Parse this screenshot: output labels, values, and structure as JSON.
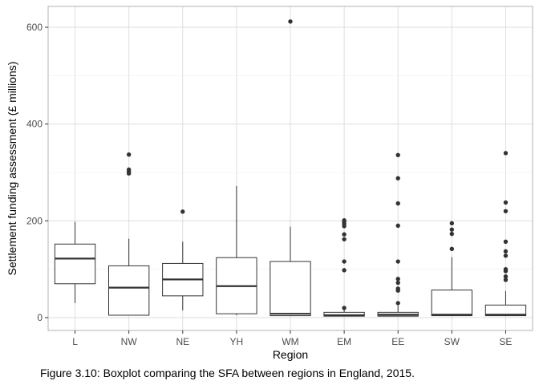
{
  "chart_data": {
    "type": "box",
    "title": "",
    "xlabel": "Region",
    "ylabel": "Settlement funding assessment (£ millions)",
    "ylim": [
      -30,
      640
    ],
    "yticks": [
      0,
      200,
      400,
      600
    ],
    "grid": true,
    "categories": [
      "L",
      "NW",
      "NE",
      "YH",
      "WM",
      "EM",
      "EE",
      "SW",
      "SE"
    ],
    "boxes": [
      {
        "category": "L",
        "min": 30,
        "q1": 70,
        "median": 122,
        "q3": 152,
        "max": 198,
        "outliers": []
      },
      {
        "category": "NW",
        "min": 5,
        "q1": 5,
        "median": 62,
        "q3": 107,
        "max": 163,
        "outliers": [
          298,
          302,
          306,
          337
        ]
      },
      {
        "category": "NE",
        "min": 15,
        "q1": 45,
        "median": 79,
        "q3": 112,
        "max": 157,
        "outliers": [
          219
        ]
      },
      {
        "category": "YH",
        "min": 5,
        "q1": 8,
        "median": 65,
        "q3": 124,
        "max": 272,
        "outliers": []
      },
      {
        "category": "WM",
        "min": 3,
        "q1": 4,
        "median": 8,
        "q3": 116,
        "max": 188,
        "outliers": [
          612
        ]
      },
      {
        "category": "EM",
        "min": 3,
        "q1": 3,
        "median": 5,
        "q3": 11,
        "max": 18,
        "outliers": [
          20,
          98,
          116,
          162,
          172,
          189,
          194,
          198,
          201
        ]
      },
      {
        "category": "EE",
        "min": 3,
        "q1": 3,
        "median": 6,
        "q3": 11,
        "max": 25,
        "outliers": [
          30,
          56,
          60,
          72,
          80,
          116,
          190,
          236,
          288,
          336
        ]
      },
      {
        "category": "SW",
        "min": 3,
        "q1": 4,
        "median": 6,
        "q3": 57,
        "max": 125,
        "outliers": [
          142,
          173,
          182,
          195
        ]
      },
      {
        "category": "SE",
        "min": 3,
        "q1": 4,
        "median": 6,
        "q3": 26,
        "max": 55,
        "outliers": [
          78,
          85,
          96,
          100,
          128,
          137,
          157,
          220,
          238,
          340
        ]
      }
    ]
  },
  "caption": "Figure 3.10: Boxplot comparing the SFA between regions in England, 2015.",
  "colors": {
    "panel_border": "#b3b3b3",
    "grid_major": "#dedede",
    "grid_minor": "#efefef",
    "box_line": "#333333",
    "outlier": "#333333",
    "tick_text": "#4d4d4d",
    "axis_title": "#000000"
  }
}
